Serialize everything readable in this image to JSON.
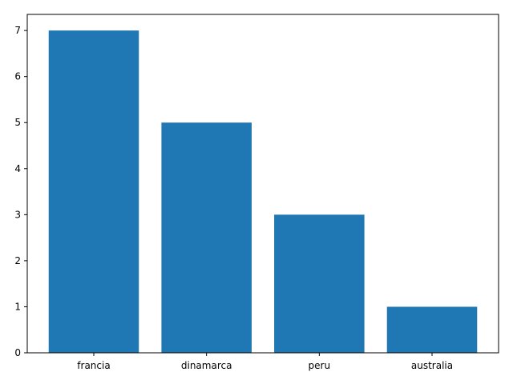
{
  "chart_data": {
    "type": "bar",
    "categories": [
      "francia",
      "dinamarca",
      "peru",
      "australia"
    ],
    "values": [
      7,
      5,
      3,
      1
    ],
    "title": "",
    "xlabel": "",
    "ylabel": "",
    "ylim": [
      0,
      7.35
    ],
    "yticks": [
      0,
      1,
      2,
      3,
      4,
      5,
      6,
      7
    ],
    "grid": false,
    "bar_color": "#1f77b4"
  }
}
